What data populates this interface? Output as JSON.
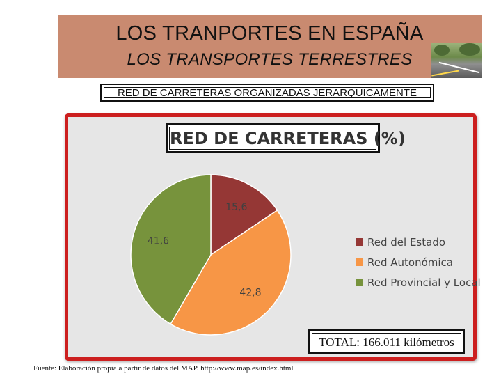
{
  "header": {
    "title": "LOS TRANPORTES EN ESPAÑA",
    "subtitle": "LOS TRANSPORTES TERRESTRES"
  },
  "caption": "RED DE CARRETERAS ORGANIZADAS JERÁRQUICAMENTE",
  "chart_data": {
    "type": "pie",
    "title": "RED DE CARRETERAS (%)",
    "categories": [
      "Red del Estado",
      "Red Autonómica",
      "Red Provincial y Local"
    ],
    "values": [
      15.6,
      42.8,
      41.6
    ],
    "value_labels": [
      "15,6",
      "42,8",
      "41,6"
    ],
    "colors": [
      "#953735",
      "#f79646",
      "#77933c"
    ],
    "legend_position": "right"
  },
  "total": "TOTAL: 166.011 kilómetros",
  "footnote": "Fuente: Elaboración propia a partir de datos del MAP. http://www.map.es/index.html"
}
